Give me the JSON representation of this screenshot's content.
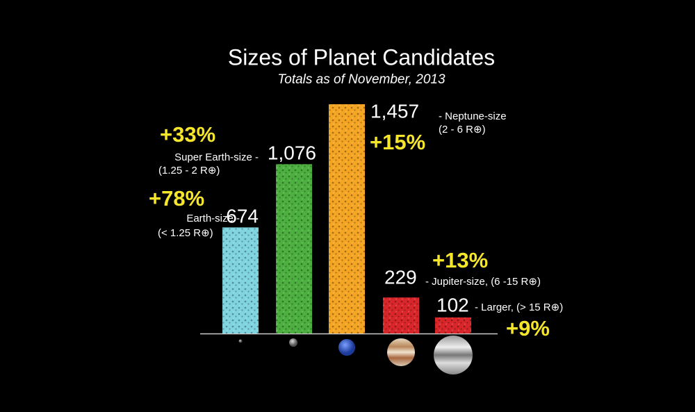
{
  "chart_data": {
    "type": "bar",
    "title": "Sizes of Planet Candidates",
    "subtitle": "Totals as of November, 2013",
    "values": [
      674,
      1076,
      1457,
      229,
      102
    ],
    "value_labels": [
      "674",
      "1,076",
      "1,457",
      "229",
      "102"
    ],
    "colors": [
      "#7fd4e0",
      "#4caf3f",
      "#f5a524",
      "#d9262a",
      "#d9262a"
    ],
    "size_labels": [
      [
        "Earth-size -",
        "(< 1.25 R⊕)"
      ],
      [
        "Super Earth-size -",
        "(1.25 - 2 R⊕)"
      ],
      [
        "- Neptune-size",
        "(2 - 6 R⊕)"
      ],
      [
        "- Jupiter-size, (6 -15 R⊕)"
      ],
      [
        "- Larger, (> 15 R⊕)"
      ]
    ],
    "changes": [
      "+78%",
      "+33%",
      "+15%",
      "+13%",
      "+9%"
    ]
  }
}
